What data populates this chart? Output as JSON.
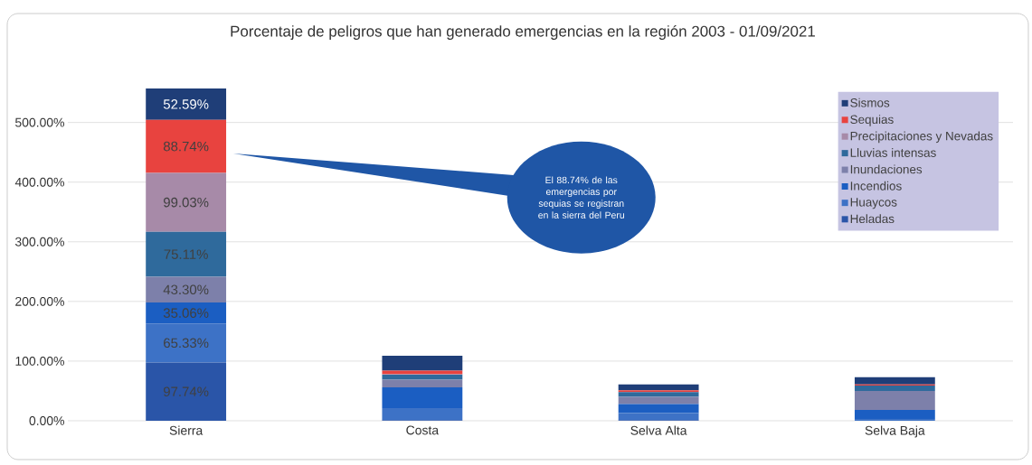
{
  "chart_data": {
    "type": "bar",
    "stacked": true,
    "title": "Porcentaje de peligros que han generado emergencias en la región 2003 - 01/09/2021",
    "categories": [
      "Sierra",
      "Costa",
      "Selva Alta",
      "Selva Baja"
    ],
    "series": [
      {
        "name": "Heladas",
        "color": "#2a55a8",
        "values": [
          97.74,
          1,
          1,
          0
        ],
        "value_labels": [
          "97.74%",
          null,
          null,
          null
        ]
      },
      {
        "name": "Huaycos",
        "color": "#3d72c6",
        "values": [
          65.33,
          20,
          12,
          3
        ],
        "value_labels": [
          "65.33%",
          null,
          null,
          null
        ]
      },
      {
        "name": "Incendios",
        "color": "#1b5ec2",
        "values": [
          35.06,
          35,
          15,
          15
        ],
        "value_labels": [
          "35.06%",
          null,
          null,
          null
        ]
      },
      {
        "name": "Inundaciones",
        "color": "#7d80aa",
        "values": [
          43.3,
          13,
          12,
          32
        ],
        "value_labels": [
          "43.30%",
          null,
          null,
          null
        ]
      },
      {
        "name": "Lluvias intensas",
        "color": "#2f6a9c",
        "values": [
          75.11,
          8,
          8,
          9
        ],
        "value_labels": [
          "75.11%",
          null,
          null,
          null
        ]
      },
      {
        "name": "Precipitaciones y Nevadas",
        "color": "#a78aa8",
        "values": [
          99.03,
          1,
          0,
          0
        ],
        "value_labels": [
          "99.03%",
          null,
          null,
          null
        ]
      },
      {
        "name": "Sequias",
        "color": "#e8433f",
        "values": [
          88.74,
          6,
          3,
          2
        ],
        "value_labels": [
          "88.74%",
          null,
          null,
          null
        ]
      },
      {
        "name": "Sismos",
        "color": "#1f3e78",
        "values": [
          52.59,
          25,
          10,
          12
        ],
        "value_labels": [
          "52.59%",
          null,
          null,
          null
        ]
      }
    ],
    "ylim": [
      0,
      560
    ],
    "yticks": [
      {
        "value": 0,
        "label": "0.00%"
      },
      {
        "value": 100,
        "label": "100.00%"
      },
      {
        "value": 200,
        "label": "200.00%"
      },
      {
        "value": 300,
        "label": "300.00%"
      },
      {
        "value": 400,
        "label": "400.00%"
      },
      {
        "value": 500,
        "label": "500.00%"
      }
    ],
    "grid": "y",
    "legend": "top right",
    "annotations": [
      "El 88.74% de las emergencias por sequias se registran en la sierra del Peru"
    ]
  }
}
